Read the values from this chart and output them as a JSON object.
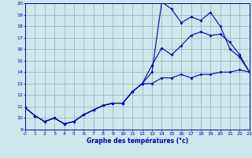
{
  "xlabel": "Graphe des températures (°c)",
  "bg_color": "#cce8ec",
  "line_color": "#0000bb",
  "grid_color": "#99aabb",
  "xlim": [
    0,
    23
  ],
  "ylim": [
    9,
    20
  ],
  "yticks": [
    9,
    10,
    11,
    12,
    13,
    14,
    15,
    16,
    17,
    18,
    19,
    20
  ],
  "xticks": [
    0,
    1,
    2,
    3,
    4,
    5,
    6,
    7,
    8,
    9,
    10,
    11,
    12,
    13,
    14,
    15,
    16,
    17,
    18,
    19,
    20,
    21,
    22,
    23
  ],
  "line1_x": [
    0,
    1,
    2,
    3,
    4,
    5,
    6,
    7,
    8,
    9,
    10,
    11,
    12,
    13,
    14,
    15,
    16,
    17,
    18,
    19,
    20,
    21,
    22,
    23
  ],
  "line1_y": [
    10.9,
    10.2,
    9.7,
    10.0,
    9.5,
    9.7,
    10.3,
    10.7,
    11.1,
    11.3,
    11.3,
    12.3,
    13.0,
    14.0,
    20.1,
    19.5,
    18.3,
    18.8,
    18.5,
    19.2,
    18.0,
    16.0,
    15.3,
    14.0
  ],
  "line2_x": [
    0,
    1,
    2,
    3,
    4,
    5,
    6,
    7,
    8,
    9,
    10,
    11,
    12,
    13,
    14,
    15,
    16,
    17,
    18,
    19,
    20,
    21,
    22,
    23
  ],
  "line2_y": [
    10.9,
    10.2,
    9.7,
    10.0,
    9.5,
    9.7,
    10.3,
    10.7,
    11.1,
    11.3,
    11.3,
    12.3,
    13.0,
    14.6,
    16.1,
    15.5,
    16.3,
    17.2,
    17.5,
    17.2,
    17.3,
    16.6,
    15.5,
    14.0
  ],
  "line3_x": [
    0,
    1,
    2,
    3,
    4,
    5,
    6,
    7,
    8,
    9,
    10,
    11,
    12,
    13,
    14,
    15,
    16,
    17,
    18,
    19,
    20,
    21,
    22,
    23
  ],
  "line3_y": [
    10.9,
    10.2,
    9.7,
    10.0,
    9.5,
    9.7,
    10.3,
    10.7,
    11.1,
    11.3,
    11.3,
    12.3,
    13.0,
    13.0,
    13.5,
    13.5,
    13.8,
    13.5,
    13.8,
    13.8,
    14.0,
    14.0,
    14.2,
    14.0
  ]
}
